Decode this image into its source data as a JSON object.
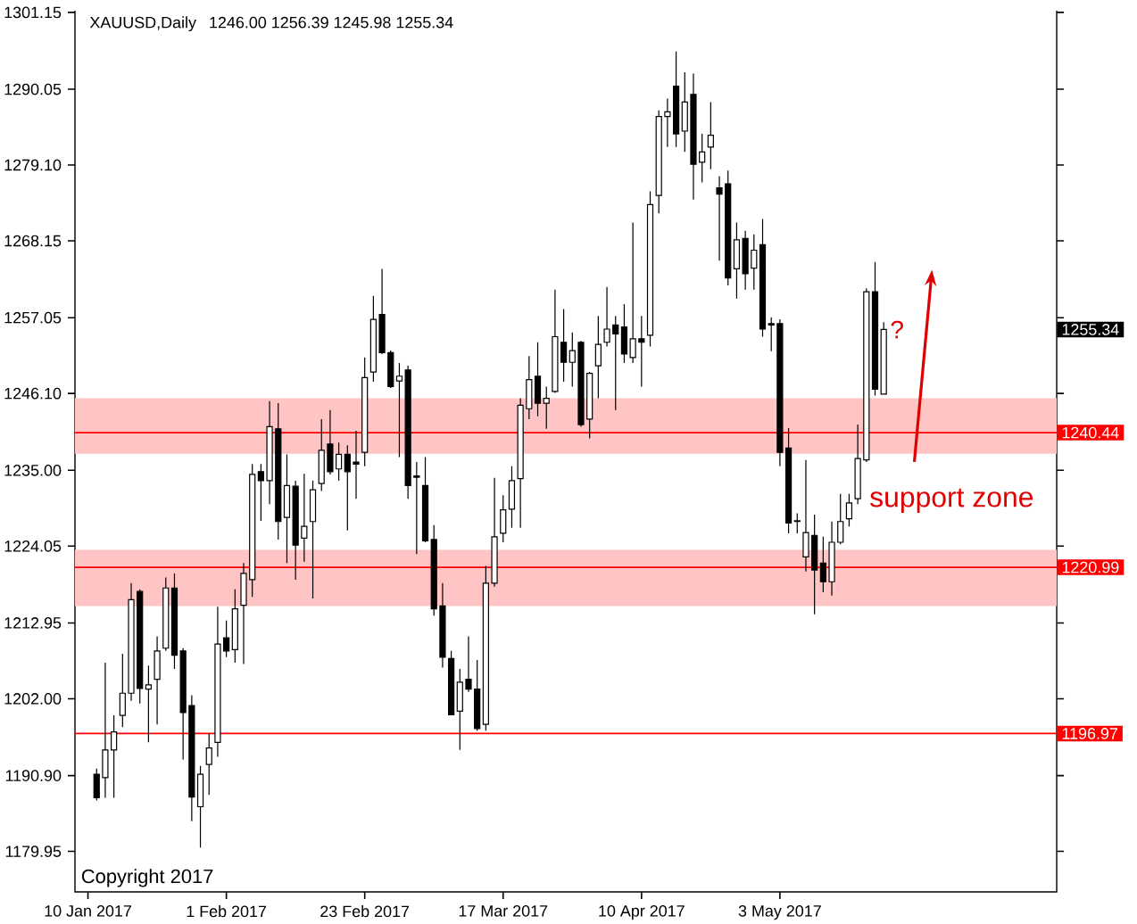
{
  "chart_data": {
    "type": "candlestick",
    "title": "XAUUSD,Daily",
    "subtitle": "1246.00 1256.39 1245.98 1255.34",
    "categories": [
      "10 Jan 2017",
      null,
      null,
      null,
      null,
      null,
      null,
      null,
      null,
      null,
      null,
      null,
      null,
      null,
      null,
      null,
      "1 Feb 2017",
      null,
      null,
      null,
      null,
      null,
      null,
      null,
      null,
      null,
      null,
      null,
      null,
      null,
      null,
      null,
      "23 Feb 2017",
      null,
      null,
      null,
      null,
      null,
      null,
      null,
      null,
      null,
      null,
      null,
      null,
      null,
      null,
      null,
      "17 Mar 2017",
      null,
      null,
      null,
      null,
      null,
      null,
      null,
      null,
      null,
      null,
      null,
      null,
      null,
      null,
      null,
      "10 Apr 2017",
      null,
      null,
      null,
      null,
      null,
      null,
      null,
      null,
      null,
      null,
      null,
      null,
      null,
      null,
      null,
      "3 May 2017",
      null,
      null,
      null,
      null,
      null,
      null,
      null,
      null,
      null,
      null,
      null,
      null
    ],
    "ohlc": [
      null,
      [
        1191.1,
        1191.9,
        1187.3,
        1187.7
      ],
      [
        1190.6,
        1207.2,
        1187.7,
        1194.6
      ],
      [
        1194.6,
        1199.6,
        1187.7,
        1197.2
      ],
      [
        1199.6,
        1208.5,
        1197.9,
        1202.8
      ],
      [
        1202.8,
        1218.7,
        1201.7,
        1216.3
      ],
      [
        1217.5,
        1217.8,
        1201.3,
        1203.5
      ],
      [
        1203.4,
        1206.8,
        1195.7,
        1204.0
      ],
      [
        1204.8,
        1211.0,
        1198.3,
        1208.9
      ],
      [
        1209.3,
        1219.5,
        1208.9,
        1218.0
      ],
      [
        1218.0,
        1220.1,
        1206.3,
        1208.3
      ],
      [
        1208.9,
        1209.3,
        1193.2,
        1200.0
      ],
      [
        1201.0,
        1202.5,
        1184.3,
        1187.8
      ],
      [
        1186.4,
        1192.3,
        1180.5,
        1191.1
      ],
      [
        1192.5,
        1197.0,
        1188.1,
        1194.9
      ],
      [
        1195.7,
        1215.3,
        1193.6,
        1209.9
      ],
      [
        1210.8,
        1213.3,
        1208.0,
        1208.9
      ],
      [
        1209.1,
        1217.8,
        1207.2,
        1215.0
      ],
      [
        1215.5,
        1221.6,
        1207.0,
        1220.1
      ],
      [
        1219.2,
        1235.9,
        1216.7,
        1234.4
      ],
      [
        1234.8,
        1235.9,
        1227.7,
        1233.5
      ],
      [
        1233.5,
        1245.0,
        1230.1,
        1241.3
      ],
      [
        1241.0,
        1244.7,
        1225.0,
        1227.6
      ],
      [
        1228.2,
        1237.3,
        1221.6,
        1232.8
      ],
      [
        1232.7,
        1233.5,
        1219.2,
        1224.2
      ],
      [
        1225.2,
        1234.5,
        1221.8,
        1226.9
      ],
      [
        1227.6,
        1233.5,
        1216.5,
        1232.2
      ],
      [
        1233.1,
        1242.4,
        1232.0,
        1237.9
      ],
      [
        1238.8,
        1243.7,
        1234.4,
        1234.8
      ],
      [
        1235.2,
        1239.0,
        1233.5,
        1237.3
      ],
      [
        1237.3,
        1238.6,
        1226.3,
        1234.8
      ],
      [
        1236.2,
        1240.7,
        1230.9,
        1235.9
      ],
      [
        1237.6,
        1251.3,
        1235.6,
        1248.4
      ],
      [
        1249.2,
        1260.2,
        1247.8,
        1256.8
      ],
      [
        1257.5,
        1264.1,
        1251.8,
        1252.0
      ],
      [
        1252.0,
        1252.3,
        1246.9,
        1247.1
      ],
      [
        1247.9,
        1250.5,
        1236.9,
        1248.6
      ],
      [
        1249.5,
        1250.1,
        1230.9,
        1232.8
      ],
      [
        1234.2,
        1236.2,
        1222.9,
        1234.0
      ],
      [
        1232.8,
        1236.9,
        1224.6,
        1224.8
      ],
      [
        1225.0,
        1227.1,
        1214.0,
        1215.0
      ],
      [
        1215.4,
        1218.7,
        1206.5,
        1208.0
      ],
      [
        1207.8,
        1208.9,
        1199.6,
        1199.7
      ],
      [
        1200.2,
        1206.3,
        1194.6,
        1204.4
      ],
      [
        1204.8,
        1211.0,
        1203.0,
        1203.4
      ],
      [
        1203.4,
        1207.6,
        1197.4,
        1197.7
      ],
      [
        1198.3,
        1221.2,
        1197.4,
        1218.7
      ],
      [
        1218.7,
        1233.9,
        1218.2,
        1225.4
      ],
      [
        1225.9,
        1231.4,
        1224.6,
        1229.3
      ],
      [
        1229.4,
        1235.6,
        1226.7,
        1233.5
      ],
      [
        1233.8,
        1245.4,
        1226.7,
        1244.4
      ],
      [
        1243.9,
        1251.5,
        1242.4,
        1248.1
      ],
      [
        1248.6,
        1253.5,
        1242.8,
        1244.7
      ],
      [
        1244.7,
        1247.1,
        1241.0,
        1245.4
      ],
      [
        1246.4,
        1261.1,
        1246.2,
        1254.3
      ],
      [
        1253.5,
        1258.3,
        1247.8,
        1250.6
      ],
      [
        1250.6,
        1254.9,
        1247.1,
        1252.3
      ],
      [
        1253.5,
        1253.7,
        1241.3,
        1241.6
      ],
      [
        1242.4,
        1249.2,
        1239.6,
        1249.0
      ],
      [
        1250.1,
        1257.3,
        1245.4,
        1253.2
      ],
      [
        1253.5,
        1261.5,
        1252.9,
        1255.4
      ],
      [
        1256.0,
        1257.3,
        1243.7,
        1254.7
      ],
      [
        1255.7,
        1259.0,
        1250.5,
        1251.8
      ],
      [
        1251.3,
        1270.8,
        1250.5,
        1254.0
      ],
      [
        1254.0,
        1257.3,
        1247.1,
        1253.5
      ],
      [
        1254.5,
        1275.3,
        1252.9,
        1273.4
      ],
      [
        1274.7,
        1287.0,
        1272.1,
        1286.1
      ],
      [
        1286.1,
        1288.7,
        1281.7,
        1286.8
      ],
      [
        1290.5,
        1295.5,
        1281.7,
        1283.6
      ],
      [
        1284.0,
        1292.5,
        1281.0,
        1288.2
      ],
      [
        1289.3,
        1292.3,
        1274.1,
        1279.2
      ],
      [
        1279.5,
        1283.6,
        1276.6,
        1281.0
      ],
      [
        1281.7,
        1288.2,
        1278.5,
        1283.4
      ],
      [
        1275.8,
        1277.5,
        1265.3,
        1274.9
      ],
      [
        1276.4,
        1278.3,
        1261.7,
        1262.8
      ],
      [
        1264.1,
        1270.8,
        1259.8,
        1268.3
      ],
      [
        1268.5,
        1269.6,
        1261.1,
        1263.4
      ],
      [
        1264.2,
        1269.1,
        1261.1,
        1266.8
      ],
      [
        1267.6,
        1271.3,
        1254.3,
        1255.4
      ],
      [
        1256.2,
        1257.1,
        1252.2,
        1256.0
      ],
      [
        1256.2,
        1256.8,
        1235.6,
        1237.6
      ],
      [
        1238.2,
        1241.1,
        1225.9,
        1227.4
      ],
      [
        1227.7,
        1228.8,
        1225.9,
        1227.6
      ],
      [
        1222.5,
        1236.5,
        1220.4,
        1226.0
      ],
      [
        1225.6,
        1228.6,
        1214.2,
        1220.6
      ],
      [
        1221.6,
        1225.4,
        1217.4,
        1218.9
      ],
      [
        1218.9,
        1227.6,
        1216.9,
        1224.6
      ],
      [
        1224.6,
        1231.6,
        1224.3,
        1227.6
      ],
      [
        1228.0,
        1231.6,
        1226.9,
        1230.3
      ],
      [
        1230.9,
        1241.6,
        1230.1,
        1236.7
      ],
      [
        1236.5,
        1261.3,
        1236.2,
        1260.8
      ],
      [
        1260.8,
        1265.1,
        1245.8,
        1246.7
      ],
      [
        1246.0,
        1256.39,
        1245.98,
        1255.34
      ]
    ],
    "ylim": [
      1174.1,
      1301.4
    ],
    "yticks": [
      1301.15,
      1290.05,
      {
        "value": 1279.1,
        "label": "1279.10"
      },
      1268.15,
      1257.05,
      {
        "value": 1246.1,
        "label": "1246.10"
      },
      {
        "value": 1235.0,
        "label": "1235.00"
      },
      1224.05,
      1212.95,
      {
        "value": 1202.0,
        "label": "1202.00"
      },
      {
        "value": 1190.9,
        "label": "1190.90"
      },
      1179.95
    ],
    "ref_lines": [
      {
        "axis": "y",
        "value": 1240.44,
        "label": "1240.44",
        "color": "#ff0000"
      },
      {
        "axis": "y",
        "value": 1220.99,
        "label": "1220.99",
        "color": "#ff0000"
      },
      {
        "axis": "y",
        "value": 1196.97,
        "label": "1196.97",
        "color": "#ff0000"
      }
    ],
    "bands": [
      {
        "axis": "y",
        "from": 1237.4,
        "to": 1245.4,
        "color": "#ffc4c4"
      },
      {
        "axis": "y",
        "from": 1215.4,
        "to": 1223.5,
        "color": "#ffc4c4"
      }
    ],
    "annotations": [
      "?",
      "1255.34",
      "support zone",
      "Copyright 2017"
    ]
  }
}
